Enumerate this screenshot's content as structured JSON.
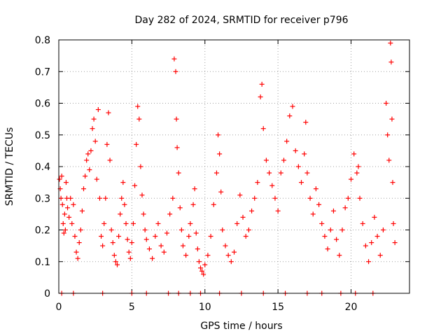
{
  "chart_data": {
    "type": "scatter",
    "title": "Day 282 of 2024, SRMTID for receiver p796",
    "xlabel": "GPS time / hours",
    "ylabel": "SRMTID / TECUs",
    "xlim": [
      0,
      24
    ],
    "ylim": [
      0,
      0.8
    ],
    "xticks": [
      0,
      5,
      10,
      15,
      20
    ],
    "xtick_labels": [
      "0",
      "5",
      "10",
      "15",
      "20"
    ],
    "yticks": [
      0,
      0.1,
      0.2,
      0.3,
      0.4,
      0.5,
      0.6,
      0.7,
      0.8
    ],
    "ytick_labels": [
      "0",
      "0.1",
      "0.2",
      "0.3",
      "0.4",
      "0.5",
      "0.6",
      "0.7",
      "0.8"
    ],
    "grid": true,
    "marker": "+",
    "color": "#ff0000",
    "series": [
      {
        "name": "SRMTID",
        "points": [
          [
            0.05,
            0.36
          ],
          [
            0.1,
            0.33
          ],
          [
            0.15,
            0.3
          ],
          [
            0.2,
            0.37
          ],
          [
            0.25,
            0.28
          ],
          [
            0.3,
            0.22
          ],
          [
            0.35,
            0.19
          ],
          [
            0.4,
            0.25
          ],
          [
            0.45,
            0.2
          ],
          [
            0.5,
            0.35
          ],
          [
            0.55,
            0.3
          ],
          [
            0.6,
            0.27
          ],
          [
            0.7,
            0.24
          ],
          [
            0.8,
            0.3
          ],
          [
            0.9,
            0.22
          ],
          [
            1.0,
            0.28
          ],
          [
            1.1,
            0.18
          ],
          [
            1.2,
            0.13
          ],
          [
            1.3,
            0.11
          ],
          [
            1.4,
            0.16
          ],
          [
            1.5,
            0.2
          ],
          [
            1.6,
            0.26
          ],
          [
            1.7,
            0.33
          ],
          [
            1.8,
            0.37
          ],
          [
            1.9,
            0.42
          ],
          [
            2.0,
            0.44
          ],
          [
            2.1,
            0.39
          ],
          [
            2.2,
            0.45
          ],
          [
            2.3,
            0.52
          ],
          [
            2.4,
            0.55
          ],
          [
            2.5,
            0.48
          ],
          [
            2.6,
            0.36
          ],
          [
            2.7,
            0.58
          ],
          [
            2.8,
            0.3
          ],
          [
            2.9,
            0.18
          ],
          [
            3.0,
            0.15
          ],
          [
            3.1,
            0.22
          ],
          [
            3.2,
            0.3
          ],
          [
            3.3,
            0.47
          ],
          [
            3.4,
            0.57
          ],
          [
            3.5,
            0.42
          ],
          [
            3.6,
            0.2
          ],
          [
            3.7,
            0.16
          ],
          [
            3.8,
            0.12
          ],
          [
            3.9,
            0.1
          ],
          [
            4.0,
            0.09
          ],
          [
            4.1,
            0.18
          ],
          [
            4.2,
            0.25
          ],
          [
            4.3,
            0.3
          ],
          [
            4.4,
            0.35
          ],
          [
            4.5,
            0.28
          ],
          [
            4.6,
            0.22
          ],
          [
            4.7,
            0.17
          ],
          [
            4.8,
            0.13
          ],
          [
            4.9,
            0.11
          ],
          [
            5.0,
            0.16
          ],
          [
            5.1,
            0.22
          ],
          [
            5.2,
            0.34
          ],
          [
            5.3,
            0.47
          ],
          [
            5.4,
            0.59
          ],
          [
            5.5,
            0.55
          ],
          [
            5.6,
            0.4
          ],
          [
            5.7,
            0.31
          ],
          [
            5.8,
            0.25
          ],
          [
            5.9,
            0.2
          ],
          [
            6.0,
            0.17
          ],
          [
            6.2,
            0.14
          ],
          [
            6.4,
            0.11
          ],
          [
            6.6,
            0.18
          ],
          [
            6.8,
            0.22
          ],
          [
            7.0,
            0.15
          ],
          [
            7.2,
            0.13
          ],
          [
            7.4,
            0.19
          ],
          [
            7.6,
            0.25
          ],
          [
            7.8,
            0.3
          ],
          [
            7.9,
            0.74
          ],
          [
            8.0,
            0.7
          ],
          [
            8.05,
            0.55
          ],
          [
            8.1,
            0.46
          ],
          [
            8.2,
            0.38
          ],
          [
            8.3,
            0.27
          ],
          [
            8.4,
            0.2
          ],
          [
            8.5,
            0.15
          ],
          [
            8.7,
            0.12
          ],
          [
            8.9,
            0.18
          ],
          [
            9.0,
            0.22
          ],
          [
            9.2,
            0.28
          ],
          [
            9.3,
            0.33
          ],
          [
            9.4,
            0.19
          ],
          [
            9.5,
            0.14
          ],
          [
            9.6,
            0.1
          ],
          [
            9.7,
            0.08
          ],
          [
            9.8,
            0.07
          ],
          [
            9.9,
            0.06
          ],
          [
            10.0,
            0.09
          ],
          [
            10.2,
            0.12
          ],
          [
            10.4,
            0.18
          ],
          [
            10.6,
            0.28
          ],
          [
            10.8,
            0.38
          ],
          [
            10.9,
            0.5
          ],
          [
            11.0,
            0.44
          ],
          [
            11.1,
            0.32
          ],
          [
            11.2,
            0.2
          ],
          [
            11.4,
            0.15
          ],
          [
            11.6,
            0.12
          ],
          [
            11.8,
            0.1
          ],
          [
            12.0,
            0.13
          ],
          [
            12.2,
            0.22
          ],
          [
            12.4,
            0.31
          ],
          [
            12.6,
            0.24
          ],
          [
            12.8,
            0.18
          ],
          [
            13.0,
            0.2
          ],
          [
            13.2,
            0.26
          ],
          [
            13.4,
            0.3
          ],
          [
            13.6,
            0.35
          ],
          [
            13.8,
            0.62
          ],
          [
            13.9,
            0.66
          ],
          [
            14.0,
            0.52
          ],
          [
            14.2,
            0.42
          ],
          [
            14.4,
            0.38
          ],
          [
            14.6,
            0.34
          ],
          [
            14.8,
            0.3
          ],
          [
            15.0,
            0.26
          ],
          [
            15.2,
            0.38
          ],
          [
            15.4,
            0.42
          ],
          [
            15.6,
            0.48
          ],
          [
            15.8,
            0.56
          ],
          [
            16.0,
            0.59
          ],
          [
            16.2,
            0.45
          ],
          [
            16.4,
            0.4
          ],
          [
            16.6,
            0.35
          ],
          [
            16.8,
            0.44
          ],
          [
            16.9,
            0.54
          ],
          [
            17.0,
            0.38
          ],
          [
            17.2,
            0.3
          ],
          [
            17.4,
            0.25
          ],
          [
            17.6,
            0.33
          ],
          [
            17.8,
            0.28
          ],
          [
            18.0,
            0.22
          ],
          [
            18.2,
            0.18
          ],
          [
            18.4,
            0.14
          ],
          [
            18.6,
            0.2
          ],
          [
            18.8,
            0.26
          ],
          [
            19.0,
            0.17
          ],
          [
            19.2,
            0.12
          ],
          [
            19.4,
            0.2
          ],
          [
            19.6,
            0.27
          ],
          [
            19.8,
            0.3
          ],
          [
            20.0,
            0.36
          ],
          [
            20.2,
            0.44
          ],
          [
            20.4,
            0.38
          ],
          [
            20.5,
            0.4
          ],
          [
            20.6,
            0.3
          ],
          [
            20.8,
            0.22
          ],
          [
            21.0,
            0.15
          ],
          [
            21.2,
            0.1
          ],
          [
            21.4,
            0.16
          ],
          [
            21.6,
            0.24
          ],
          [
            21.8,
            0.18
          ],
          [
            22.0,
            0.12
          ],
          [
            22.2,
            0.2
          ],
          [
            22.4,
            0.6
          ],
          [
            22.5,
            0.5
          ],
          [
            22.6,
            0.42
          ],
          [
            22.7,
            0.79
          ],
          [
            22.75,
            0.73
          ],
          [
            22.8,
            0.55
          ],
          [
            22.85,
            0.35
          ],
          [
            22.9,
            0.22
          ],
          [
            23.0,
            0.16
          ],
          [
            0.2,
            0.0
          ],
          [
            1.0,
            0.0
          ],
          [
            3.0,
            0.0
          ],
          [
            5.0,
            0.0
          ],
          [
            6.0,
            0.0
          ],
          [
            7.5,
            0.0
          ],
          [
            8.2,
            0.0
          ],
          [
            9.0,
            0.0
          ],
          [
            9.7,
            0.0
          ],
          [
            11.0,
            0.0
          ],
          [
            12.5,
            0.0
          ],
          [
            14.0,
            0.0
          ],
          [
            15.5,
            0.0
          ],
          [
            17.0,
            0.0
          ],
          [
            18.0,
            0.0
          ],
          [
            19.3,
            0.0
          ],
          [
            20.3,
            0.0
          ],
          [
            21.5,
            0.0
          ]
        ]
      }
    ]
  }
}
